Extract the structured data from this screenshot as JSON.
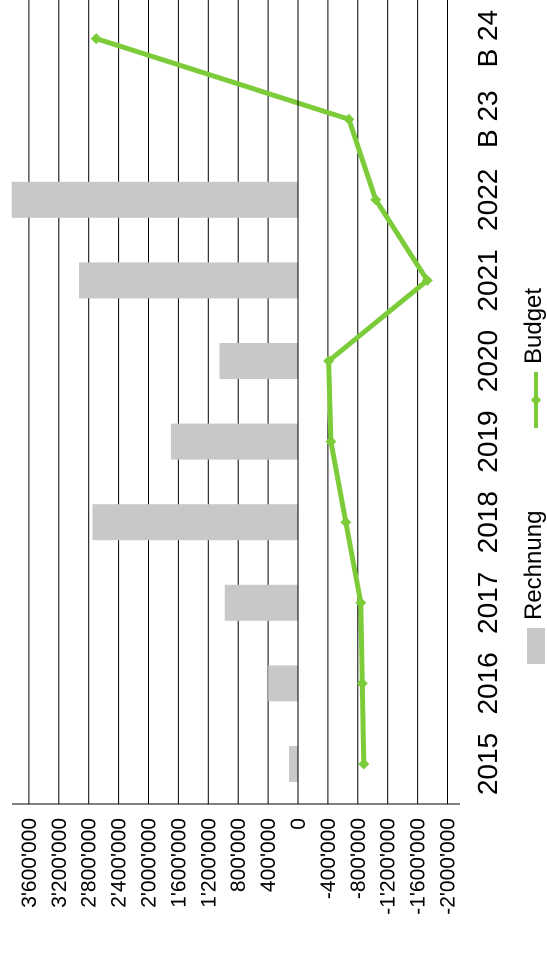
{
  "chart_data": {
    "type": "bar",
    "orientation": "rotated-90-cw",
    "categories": [
      "2015",
      "2016",
      "2017",
      "2018",
      "2019",
      "2020",
      "2021",
      "2022",
      "B 23",
      "B 24"
    ],
    "series": [
      {
        "name": "Rechnung",
        "type": "bar",
        "color": "#c8c8c8",
        "values": [
          120000,
          400000,
          980000,
          2750000,
          1700000,
          1050000,
          2930000,
          3830000,
          null,
          null
        ]
      },
      {
        "name": "Budget",
        "type": "line",
        "color": "#7ccc3a",
        "values": [
          -880000,
          -860000,
          -840000,
          -640000,
          -440000,
          -410000,
          -1730000,
          -1040000,
          -680000,
          2700000
        ]
      }
    ],
    "value_axis": {
      "range": [
        -2000000,
        3800000
      ],
      "ticks": [
        3600000,
        3200000,
        2800000,
        2400000,
        2000000,
        1600000,
        1200000,
        800000,
        400000,
        0,
        -400000,
        -800000,
        -1200000,
        -1600000,
        -2000000
      ],
      "tick_labels": [
        "3'600'000",
        "3'200'000",
        "2'800'000",
        "2'400'000",
        "2'000'000",
        "1'600'000",
        "1'200'000",
        "800'000",
        "400'000",
        "0",
        "-400'000",
        "-800'000",
        "-1'200'000",
        "-1'600'000",
        "-2'000'000"
      ]
    },
    "grid": true,
    "legend": {
      "position": "bottom",
      "items": [
        "Rechnung",
        "Budget"
      ]
    },
    "title": "",
    "xlabel": "",
    "ylabel": ""
  }
}
